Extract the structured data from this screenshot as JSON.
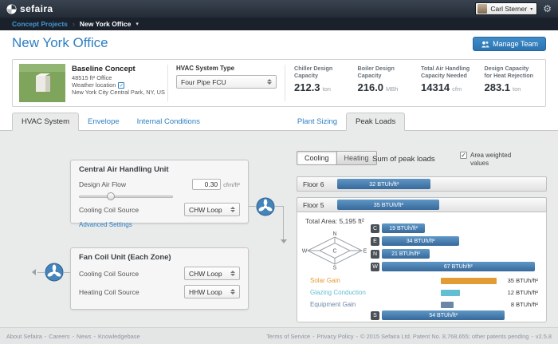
{
  "icons": {
    "gear": "⚙",
    "check": "✓",
    "caret_down": "▾",
    "breadcrumb_separator": "›"
  },
  "topbar": {
    "logo_text": "sefaira",
    "user_name": "Carl Sterner"
  },
  "breadcrumb": {
    "section": "Concept Projects",
    "current": "New York Office"
  },
  "page": {
    "title": "New York Office",
    "manage_team_label": "Manage Team"
  },
  "summary": {
    "concept_name": "Baseline Concept",
    "area_office": "48515 ft² Office",
    "weather_label": "Weather location",
    "weather_value": "New York City Central Park, NY, US",
    "hvac_type_label": "HVAC System Type",
    "hvac_type_value": "Four Pipe FCU",
    "metrics": [
      {
        "label": "Chiller Design Capacity",
        "value": "212.3",
        "unit": "ton"
      },
      {
        "label": "Boiler Design Capacity",
        "value": "216.0",
        "unit": "MBh"
      },
      {
        "label": "Total Air Handling Capacity Needed",
        "value": "14314",
        "unit": "cfm"
      },
      {
        "label": "Design Capacity for Heat Rejection",
        "value": "283.1",
        "unit": "ton"
      }
    ]
  },
  "tabs": {
    "hvac_system": "HVAC System",
    "envelope": "Envelope",
    "internal_conditions": "Internal Conditions",
    "plant_sizing": "Plant Sizing",
    "peak_loads": "Peak Loads"
  },
  "hvac_panels": {
    "cahu": {
      "title": "Central Air Handling Unit",
      "design_air_flow_label": "Design Air Flow",
      "design_air_flow_value": "0.30",
      "design_air_flow_unit": "cfm/ft²",
      "cooling_coil_label": "Cooling Coil Source",
      "cooling_coil_value": "CHW Loop",
      "advanced_settings_label": "Advanced Settings"
    },
    "fcu": {
      "title": "Fan Coil Unit (Each Zone)",
      "cooling_coil_label": "Cooling Coil Source",
      "cooling_coil_value": "CHW Loop",
      "heating_coil_label": "Heating Coil Source",
      "heating_coil_value": "HHW Loop"
    }
  },
  "peak_loads": {
    "mode_cooling": "Cooling",
    "mode_heating": "Heating",
    "sum_label": "Sum of peak loads",
    "area_weighted_label": "Area weighted values",
    "unit": "BTUh/ft²",
    "axis_max": 70,
    "floors": [
      {
        "name": "Floor 6",
        "value": 32,
        "label": "32 BTUh/ft²"
      },
      {
        "name": "Floor 5",
        "value": 35,
        "label": "35 BTUh/ft²"
      }
    ],
    "floor_detail": {
      "total_area": "Total Area: 5,195 ft²",
      "compass": {
        "n": "N",
        "w": "W",
        "e": "E",
        "s": "S",
        "c": "C"
      },
      "zones": [
        {
          "key": "C",
          "value": 19,
          "label": "19 BTUh/ft²"
        },
        {
          "key": "E",
          "value": 34,
          "label": "34 BTUh/ft²"
        },
        {
          "key": "N",
          "value": 21,
          "label": "21 BTUh/ft²"
        },
        {
          "key": "W",
          "value": 67,
          "label": "67 BTUh/ft²"
        }
      ],
      "breakdown": [
        {
          "name": "Solar Gain",
          "value": 35,
          "label": "35 BTUh/ft²",
          "color": "#e39b33"
        },
        {
          "name": "Glazing Conduction",
          "value": 12,
          "label": "12 BTUh/ft²",
          "color": "#62bed2"
        },
        {
          "name": "Equipment Gain",
          "value": 8,
          "label": "8 BTUh/ft²",
          "color": "#6b87a5"
        }
      ],
      "south": {
        "key": "S",
        "value": 54,
        "label": "54 BTUh/ft²"
      }
    }
  },
  "footer": {
    "sep": "-",
    "left_links": [
      "About Sefaira",
      "Careers",
      "News",
      "Knowledgebase"
    ],
    "terms": "Terms of Service",
    "privacy": "Privacy Policy",
    "copyright": "© 2015 Sefaira Ltd. Patent No. 8,768,655; other patents pending",
    "version": "v2.5.8"
  }
}
